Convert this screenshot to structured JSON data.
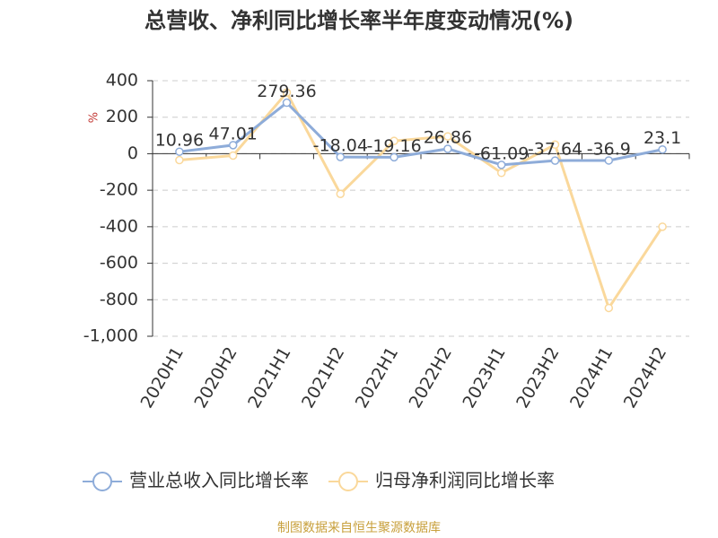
{
  "chart_data": {
    "type": "line",
    "title": "总营收、净利同比增长率半年度变动情况(%)",
    "y_label": "%",
    "categories": [
      "2020H1",
      "2020H2",
      "2021H1",
      "2021H2",
      "2022H1",
      "2022H2",
      "2023H1",
      "2023H2",
      "2024H1",
      "2024H2"
    ],
    "series": [
      {
        "name": "营业总收入同比增长率",
        "color": "#8eacd9",
        "values": [
          10.96,
          47.01,
          279.36,
          -18.04,
          -19.16,
          26.86,
          -61.09,
          -37.64,
          -36.9,
          23.1
        ]
      },
      {
        "name": "归母净利润同比增长率",
        "color": "#fad89b",
        "values": [
          -35,
          -10,
          335,
          -220,
          70,
          95,
          -105,
          50,
          -845,
          -400
        ]
      }
    ],
    "ylim": [
      -1000,
      400
    ],
    "yticks": [
      {
        "value": -1000,
        "label": "-1,000"
      },
      -800,
      -600,
      -400,
      -200,
      0,
      200,
      400
    ],
    "grid": true,
    "source": "制图数据来自恒生聚源数据库"
  }
}
